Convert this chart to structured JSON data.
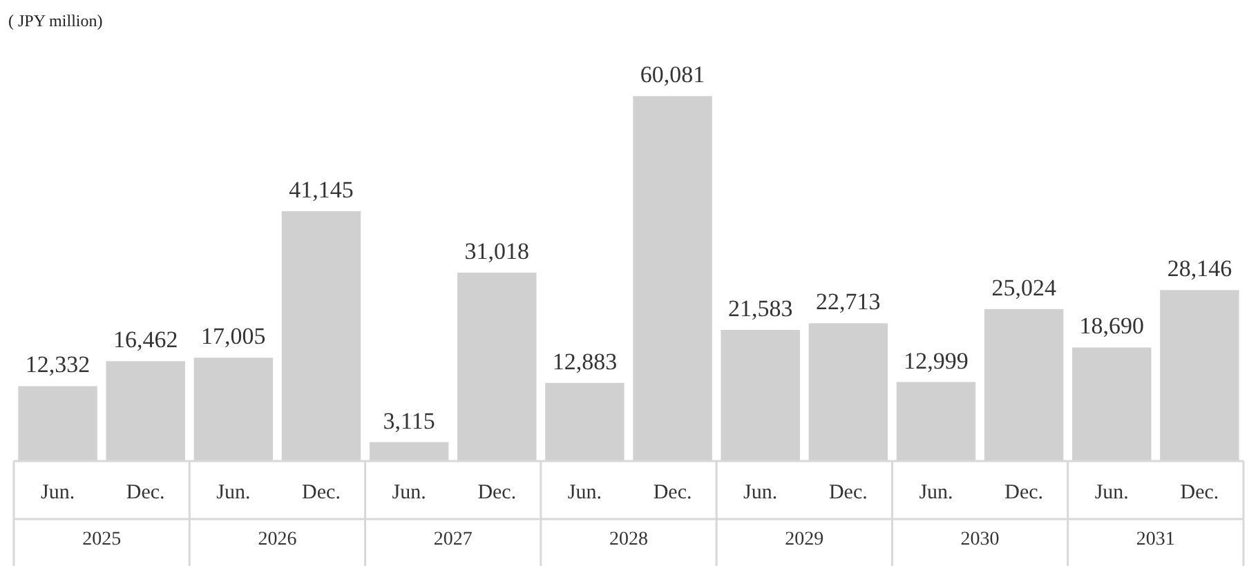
{
  "chart_data": {
    "type": "bar",
    "ylabel": "( JPY million)",
    "categories": [
      "Jun.",
      "Dec.",
      "Jun.",
      "Dec.",
      "Jun.",
      "Dec.",
      "Jun.",
      "Dec.",
      "Jun.",
      "Dec.",
      "Jun.",
      "Dec.",
      "Jun.",
      "Dec."
    ],
    "values": [
      12332,
      16462,
      17005,
      41145,
      3115,
      31018,
      12883,
      60081,
      21583,
      22713,
      12999,
      25024,
      18690,
      28146
    ],
    "value_labels": [
      "12,332",
      "16,462",
      "17,005",
      "41,145",
      "3,115",
      "31,018",
      "12,883",
      "60,081",
      "21,583",
      "22,713",
      "12,999",
      "25,024",
      "18,690",
      "28,146"
    ],
    "color": "#d0d0d0",
    "grid": false,
    "legend": false,
    "annotations": [
      "2025",
      "2026",
      "2027",
      "2028",
      "2029",
      "2030",
      "2031"
    ]
  }
}
